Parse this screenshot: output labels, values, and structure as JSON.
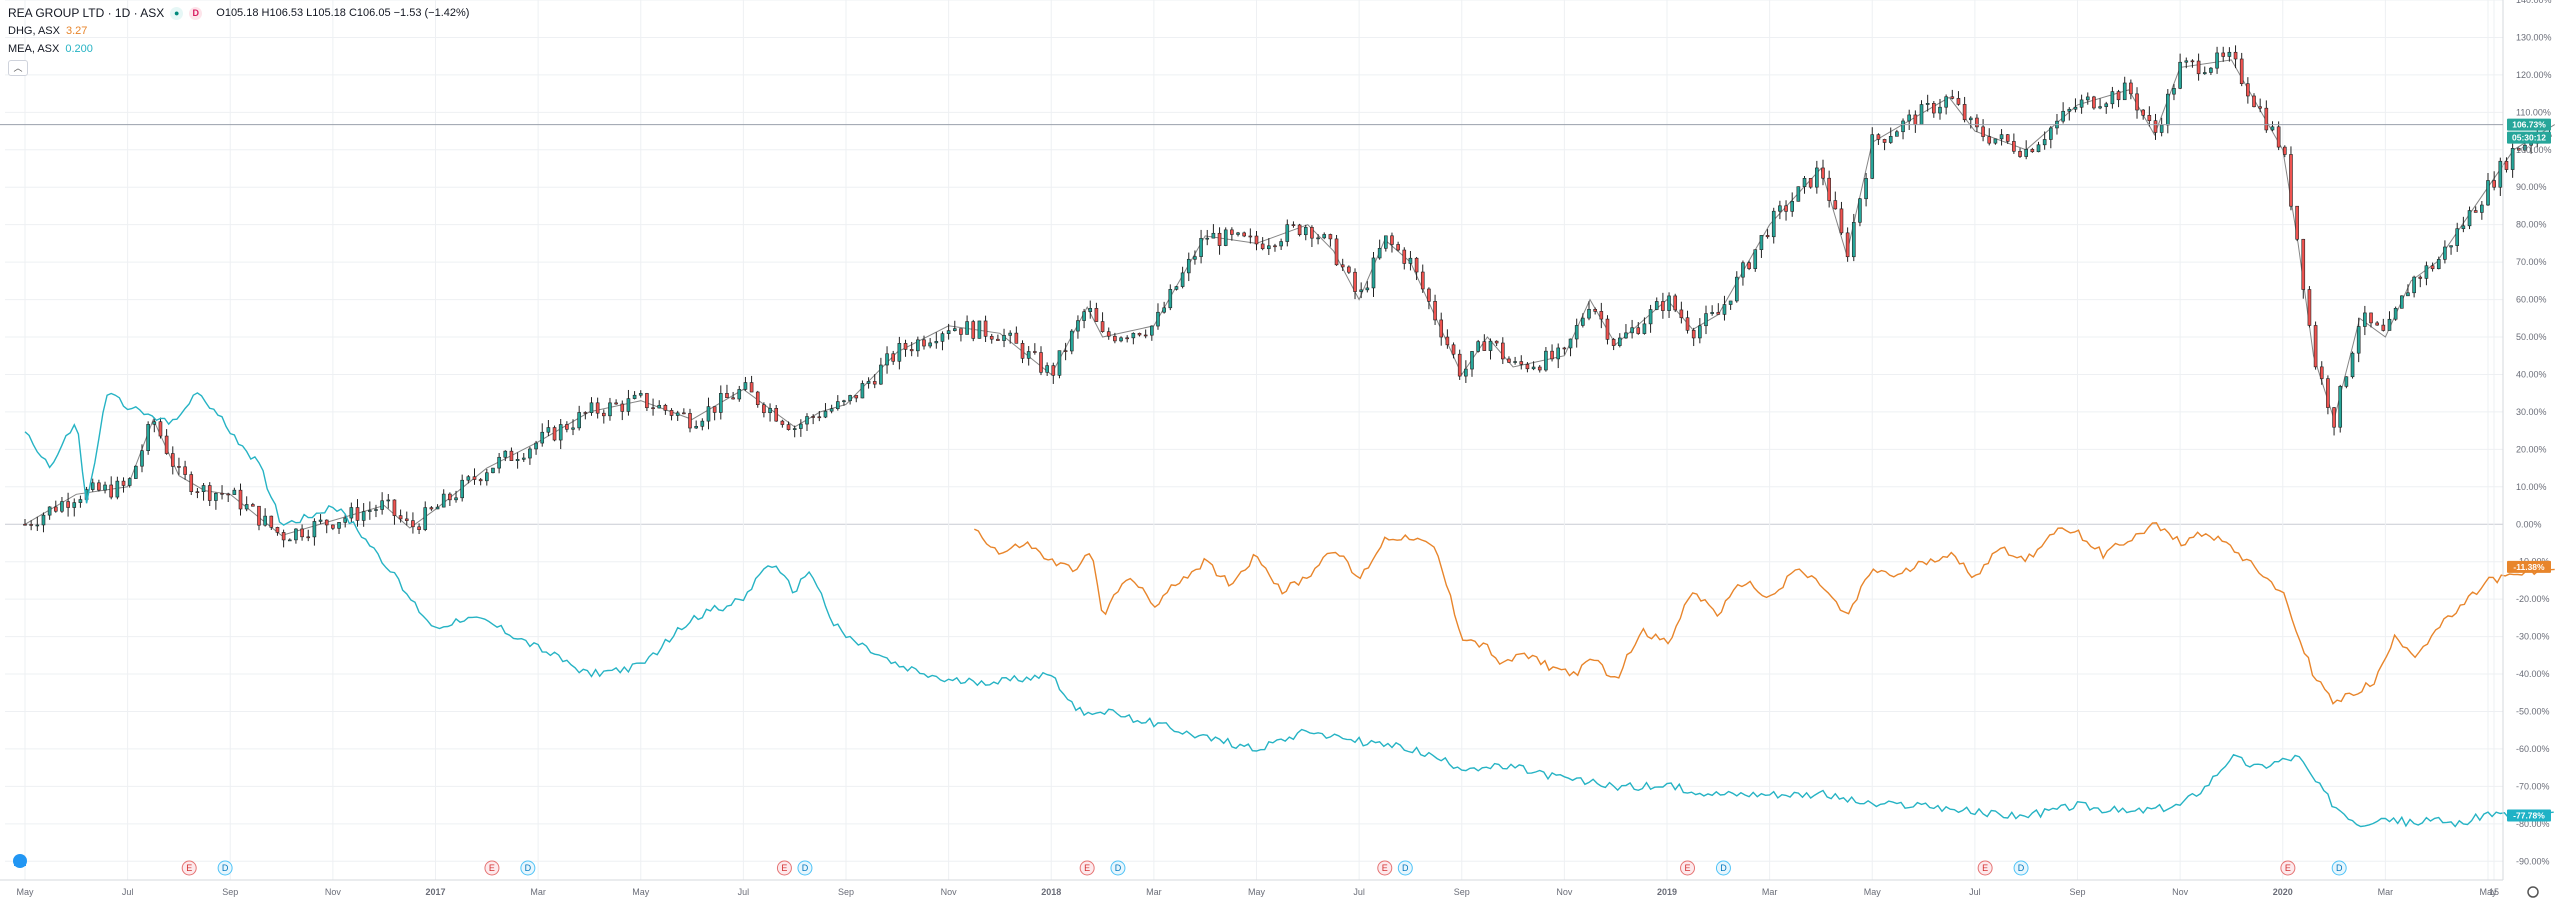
{
  "legend": {
    "main_title": "REA GROUP LTD · 1D · ASX",
    "ohlc": "O105.18  H106.53  L105.18  C106.05  −1.53  (−1.42%)",
    "compare": [
      {
        "name": "DHG, ASX",
        "value": "3.27",
        "color": "#e8852b"
      },
      {
        "name": "MEA, ASX",
        "value": "0.200",
        "color": "#26b3c4"
      }
    ]
  },
  "colors": {
    "up": "#26a69a",
    "down": "#ef5350",
    "main_line": "#222222",
    "orange": "#e8852b",
    "teal": "#26b3c4",
    "grid": "#eef0f3"
  },
  "price_badges": {
    "main": "106.73%",
    "countdown": "05:30:12",
    "orange": "-11.38%",
    "teal": "-77.78%"
  },
  "chart_data": {
    "type": "line",
    "title": "REA GROUP LTD · 1D · ASX",
    "ylabel": "",
    "y_unit": "%",
    "ylim": [
      -95,
      140
    ],
    "y_ticks": [
      "140.00%",
      "130.00%",
      "120.00%",
      "110.00%",
      "100.00%",
      "90.00%",
      "80.00%",
      "70.00%",
      "60.00%",
      "50.00%",
      "40.00%",
      "30.00%",
      "20.00%",
      "10.00%",
      "0.00%",
      "-10.00%",
      "-20.00%",
      "-30.00%",
      "-40.00%",
      "-50.00%",
      "-60.00%",
      "-70.00%",
      "-80.00%",
      "-90.00%"
    ],
    "x_ticks": [
      "May",
      "Jul",
      "Sep",
      "Nov",
      "2017",
      "Mar",
      "May",
      "Jul",
      "Sep",
      "Nov",
      "2018",
      "Mar",
      "May",
      "Jul",
      "Sep",
      "Nov",
      "2019",
      "Mar",
      "May",
      "Jul",
      "Sep",
      "Nov",
      "2020",
      "Mar",
      "May",
      "15"
    ],
    "x_range_months": [
      0,
      49.3
    ],
    "events": [
      {
        "label": "E",
        "month": 3.2,
        "kind": "earnings"
      },
      {
        "label": "D",
        "month": 3.9,
        "kind": "dividend"
      },
      {
        "label": "E",
        "month": 9.1,
        "kind": "earnings"
      },
      {
        "label": "D",
        "month": 9.8,
        "kind": "dividend"
      },
      {
        "label": "E",
        "month": 14.8,
        "kind": "earnings"
      },
      {
        "label": "D",
        "month": 15.2,
        "kind": "dividend"
      },
      {
        "label": "E",
        "month": 20.7,
        "kind": "earnings"
      },
      {
        "label": "D",
        "month": 21.3,
        "kind": "dividend"
      },
      {
        "label": "E",
        "month": 26.5,
        "kind": "earnings"
      },
      {
        "label": "D",
        "month": 26.9,
        "kind": "dividend"
      },
      {
        "label": "E",
        "month": 32.4,
        "kind": "earnings"
      },
      {
        "label": "D",
        "month": 33.1,
        "kind": "dividend"
      },
      {
        "label": "E",
        "month": 38.2,
        "kind": "earnings"
      },
      {
        "label": "D",
        "month": 38.9,
        "kind": "dividend"
      },
      {
        "label": "E",
        "month": 44.1,
        "kind": "earnings"
      },
      {
        "label": "D",
        "month": 45.1,
        "kind": "dividend"
      }
    ],
    "series": [
      {
        "name": "REA",
        "style": "candles",
        "x_month": [
          0,
          1,
          2,
          2.5,
          3,
          3.5,
          4,
          5,
          6,
          7,
          7.5,
          8,
          9,
          10,
          11,
          12,
          13,
          14,
          15,
          15.5,
          16,
          17,
          18,
          19,
          20,
          20.7,
          21,
          22,
          23,
          24,
          25,
          25.5,
          26,
          26.5,
          27,
          27.5,
          28,
          28.5,
          29,
          30,
          30.5,
          31,
          32,
          32.5,
          33,
          34,
          35,
          35.5,
          36,
          37,
          37.5,
          38,
          39,
          40,
          41,
          41.5,
          42,
          43,
          44,
          44.3,
          44.6,
          45,
          45.5,
          46,
          46.5,
          47,
          47.5,
          48,
          48.5,
          49.3
        ],
        "values": [
          0,
          8,
          10,
          28,
          13,
          9,
          8,
          -3,
          1,
          5,
          -1,
          4,
          15,
          22,
          30,
          33,
          28,
          36,
          26,
          30,
          32,
          46,
          53,
          51,
          40,
          58,
          50,
          53,
          77,
          75,
          80,
          73,
          60,
          76,
          70,
          55,
          40,
          50,
          42,
          45,
          60,
          48,
          60,
          52,
          56,
          80,
          95,
          72,
          102,
          110,
          114,
          105,
          100,
          112,
          116,
          104,
          122,
          124,
          100,
          75,
          45,
          28,
          55,
          50,
          65,
          70,
          80,
          90,
          100,
          106.73
        ]
      },
      {
        "name": "DHG, ASX",
        "style": "line",
        "x_month": [
          18.5,
          19,
          19.5,
          20,
          20.4,
          20.8,
          21,
          21.5,
          22,
          22.5,
          23,
          23.5,
          24,
          24.5,
          25,
          25.5,
          26,
          26.5,
          27,
          27.5,
          28,
          28.5,
          28.8,
          29.2,
          29.7,
          30.2,
          30.6,
          31,
          31.5,
          32,
          32.5,
          33,
          33.5,
          34,
          34.5,
          35,
          35.5,
          36,
          36.5,
          37,
          37.5,
          38,
          38.5,
          39,
          39.5,
          40,
          40.5,
          41,
          41.5,
          42,
          42.5,
          43,
          43.5,
          44,
          44.3,
          44.6,
          45,
          45.4,
          45.8,
          46.2,
          46.6,
          47,
          47.5,
          48,
          48.5,
          49.3
        ],
        "values": [
          -1,
          -8,
          -5,
          -10,
          -12,
          -8,
          -25,
          -13,
          -22,
          -15,
          -10,
          -16,
          -8,
          -18,
          -14,
          -6,
          -15,
          -4,
          -3,
          -7,
          -30,
          -33,
          -38,
          -34,
          -38,
          -40,
          -36,
          -42,
          -28,
          -32,
          -18,
          -24,
          -15,
          -20,
          -12,
          -16,
          -25,
          -12,
          -14,
          -10,
          -8,
          -14,
          -6,
          -10,
          -2,
          -2,
          -8,
          -4,
          0,
          -5,
          -2,
          -6,
          -12,
          -18,
          -30,
          -40,
          -48,
          -45,
          -42,
          -30,
          -35,
          -28,
          -22,
          -15,
          -14,
          -11.38
        ]
      },
      {
        "name": "MEA, ASX",
        "style": "line",
        "x_month": [
          0,
          0.5,
          1,
          1.2,
          1.6,
          2.2,
          2.8,
          3.4,
          4,
          4.6,
          5,
          5.5,
          6,
          6.4,
          7,
          7.5,
          8,
          8.5,
          9,
          10,
          11,
          12,
          13,
          14,
          14.5,
          15,
          15.3,
          15.7,
          16,
          17,
          18,
          19,
          20,
          20.5,
          21,
          22,
          23,
          24,
          25,
          26,
          27,
          28,
          29,
          30,
          31,
          32,
          33,
          34,
          35,
          36,
          37,
          38,
          39,
          40,
          41,
          42,
          42.5,
          43,
          43.5,
          44,
          44.3,
          44.6,
          45,
          45.5,
          46,
          46.5,
          47,
          47.5,
          48,
          48.5,
          49.3
        ],
        "values": [
          25,
          15,
          28,
          5,
          35,
          30,
          27,
          35,
          25,
          15,
          0,
          2,
          5,
          0,
          -10,
          -20,
          -28,
          -25,
          -26,
          -33,
          -40,
          -38,
          -25,
          -20,
          -10,
          -18,
          -12,
          -25,
          -30,
          -38,
          -42,
          -42,
          -40,
          -50,
          -50,
          -53,
          -57,
          -60,
          -55,
          -58,
          -60,
          -65,
          -65,
          -68,
          -70,
          -70,
          -72,
          -72,
          -72,
          -75,
          -75,
          -77,
          -78,
          -75,
          -77,
          -75,
          -70,
          -62,
          -65,
          -63,
          -62,
          -68,
          -75,
          -80,
          -78,
          -80,
          -79,
          -80,
          -77,
          -78,
          -77.78
        ]
      }
    ]
  }
}
